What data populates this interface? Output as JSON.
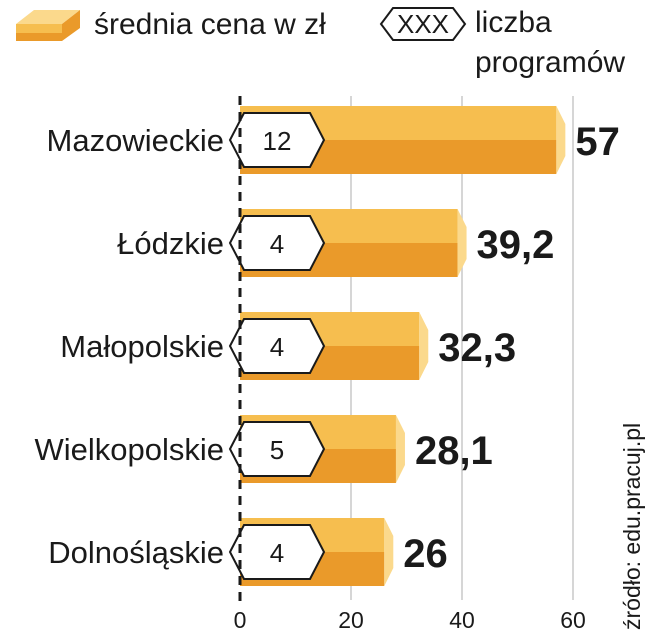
{
  "legend": {
    "price_label": "średnia cena w zł",
    "count_badge": "XXX",
    "count_label_line1": "liczba",
    "count_label_line2": "programów"
  },
  "source": "źródło: edu.pracuj.pl",
  "colors": {
    "bar_top": "#f6be4f",
    "bar_bottom": "#ea9a2a",
    "bar_end": "#fbd98c",
    "grid": "#c8c8c8",
    "axis": "#1a1a1a"
  },
  "chart_data": {
    "type": "bar",
    "orientation": "horizontal",
    "categories": [
      "Mazowieckie",
      "Łódzkie",
      "Małopolskie",
      "Wielkopolskie",
      "Dolnośląskie"
    ],
    "series": [
      {
        "name": "średnia cena w zł",
        "values": [
          57,
          39.2,
          32.3,
          28.1,
          26
        ]
      },
      {
        "name": "liczba programów",
        "values": [
          12,
          4,
          4,
          5,
          4
        ]
      }
    ],
    "value_labels": [
      "57",
      "39,2",
      "32,3",
      "28,1",
      "26"
    ],
    "count_labels": [
      "12",
      "4",
      "4",
      "5",
      "4"
    ],
    "xlim": [
      0,
      60
    ],
    "xticks": [
      0,
      20,
      40,
      60
    ],
    "xtick_labels": [
      "0",
      "20",
      "40",
      "60"
    ],
    "grid": true,
    "legend_position": "top"
  }
}
